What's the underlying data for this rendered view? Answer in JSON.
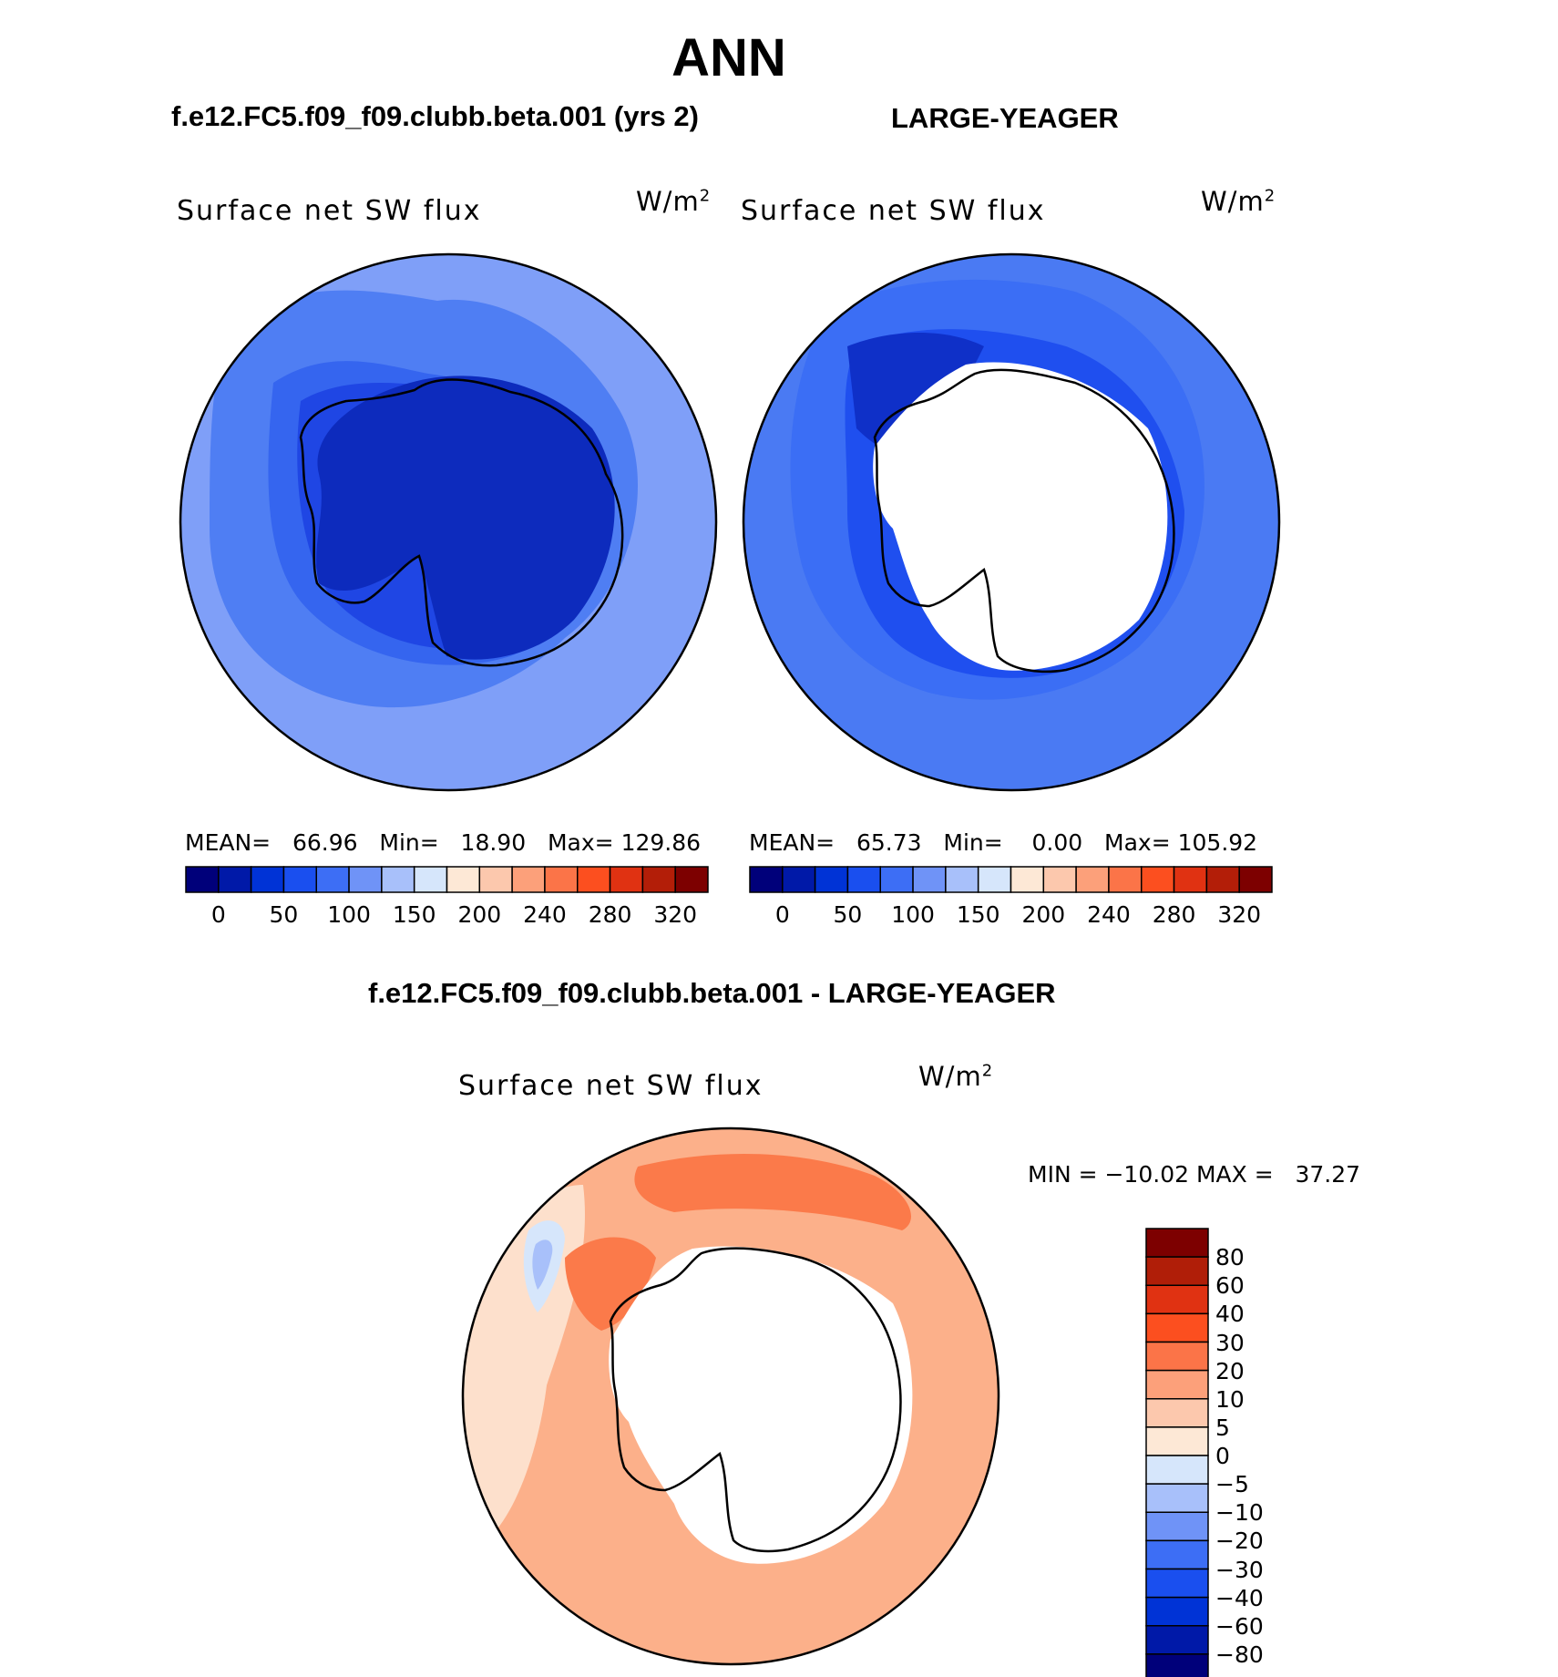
{
  "title": "ANN",
  "panels": [
    {
      "case": "f.e12.FC5.f09_f09.clubb.beta.001 (yrs 2)",
      "variable": "Surface net SW flux",
      "units": "W/m",
      "units_exp": "2",
      "stats": {
        "mean_label": "MEAN=",
        "mean": "66.96",
        "min_label": "Min=",
        "min": "18.90",
        "max_label": "Max=",
        "max": "129.86"
      }
    },
    {
      "case": "LARGE-YEAGER",
      "variable": "Surface net SW flux",
      "units": "W/m",
      "units_exp": "2",
      "stats": {
        "mean_label": "MEAN=",
        "mean": "65.73",
        "min_label": "Min=",
        "min": "0.00",
        "max_label": "Max=",
        "max": "105.92"
      }
    },
    {
      "case": "f.e12.FC5.f09_f09.clubb.beta.001 - LARGE-YEAGER",
      "variable": "Surface net SW flux",
      "units": "W/m",
      "units_exp": "2",
      "stats": {
        "minmax": "MIN = −10.02 MAX =   37.27"
      }
    }
  ],
  "colorbar_top": {
    "colors": [
      "#00007a",
      "#0019a8",
      "#0033d6",
      "#1a4fef",
      "#3d6ef5",
      "#6f93f7",
      "#a8c0fa",
      "#d6e6fb",
      "#fde8d6",
      "#fcc8ad",
      "#fca07a",
      "#fb7448",
      "#fc4f1f",
      "#e03212",
      "#b31e08",
      "#7d0000"
    ],
    "labels": [
      "0",
      "50",
      "100",
      "150",
      "200",
      "240",
      "280",
      "320"
    ]
  },
  "colorbar_diff": {
    "colors": [
      "#7d0000",
      "#b01e08",
      "#e03212",
      "#fc4f1f",
      "#fb7448",
      "#fca07a",
      "#fcc8ad",
      "#fde8d6",
      "#d6e6fb",
      "#a8c0fa",
      "#6f93f7",
      "#3d6ef5",
      "#1a4fef",
      "#0033d6",
      "#0019a8",
      "#00007a"
    ],
    "labels": [
      "80",
      "60",
      "40",
      "30",
      "20",
      "10",
      "5",
      "0",
      "−5",
      "−10",
      "−20",
      "−30",
      "−40",
      "−60",
      "−80"
    ]
  }
}
